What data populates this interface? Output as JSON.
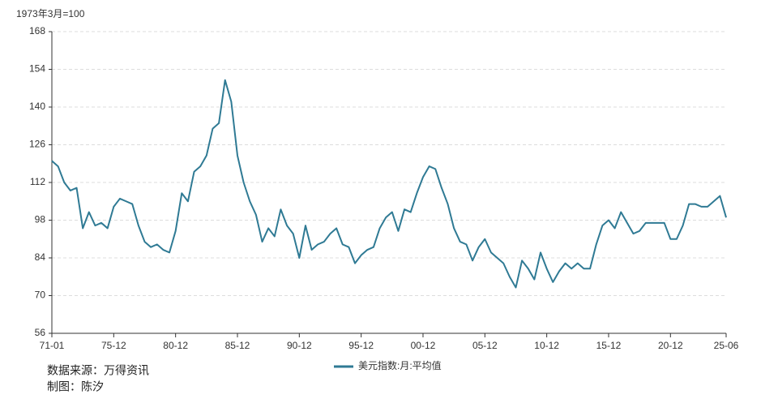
{
  "chart_data": {
    "type": "line",
    "y_label": "1973年3月=100",
    "categories": [
      "71-01",
      null,
      null,
      null,
      null,
      null,
      null,
      null,
      null,
      null,
      "75-12",
      null,
      null,
      null,
      null,
      null,
      null,
      null,
      null,
      null,
      "80-12",
      null,
      null,
      null,
      null,
      null,
      null,
      null,
      null,
      null,
      "85-12",
      null,
      null,
      null,
      null,
      null,
      null,
      null,
      null,
      null,
      "90-12",
      null,
      null,
      null,
      null,
      null,
      null,
      null,
      null,
      null,
      "95-12",
      null,
      null,
      null,
      null,
      null,
      null,
      null,
      null,
      null,
      "00-12",
      null,
      null,
      null,
      null,
      null,
      null,
      null,
      null,
      null,
      "05-12",
      null,
      null,
      null,
      null,
      null,
      null,
      null,
      null,
      null,
      "10-12",
      null,
      null,
      null,
      null,
      null,
      null,
      null,
      null,
      null,
      "15-12",
      null,
      null,
      null,
      null,
      null,
      null,
      null,
      null,
      null,
      "20-12",
      null,
      null,
      null,
      null,
      null,
      null,
      null,
      null,
      "25-06"
    ],
    "series": [
      {
        "name": "美元指数:月:平均值",
        "color": "#2f7a94",
        "values": [
          120,
          118,
          112,
          109,
          110,
          95,
          101,
          96,
          97,
          95,
          103,
          106,
          105,
          104,
          96,
          90,
          88,
          89,
          87,
          86,
          94,
          108,
          105,
          116,
          118,
          122,
          132,
          134,
          150,
          142,
          122,
          112,
          105,
          100,
          90,
          95,
          92,
          102,
          96,
          93,
          84,
          96,
          87,
          89,
          90,
          93,
          95,
          89,
          88,
          82,
          85,
          87,
          88,
          95,
          99,
          101,
          94,
          102,
          101,
          108,
          114,
          118,
          117,
          110,
          104,
          95,
          90,
          89,
          83,
          88,
          91,
          86,
          84,
          82,
          77,
          73,
          83,
          80,
          76,
          86,
          80,
          75,
          79,
          82,
          80,
          82,
          80,
          80,
          89,
          96,
          98,
          95,
          101,
          97,
          93,
          94,
          97,
          97,
          97,
          97,
          91,
          91,
          96,
          104,
          104,
          103,
          103,
          105,
          107,
          99
        ]
      }
    ],
    "ylim": [
      56,
      168
    ],
    "yticks": [
      56,
      70,
      84,
      98,
      112,
      126,
      140,
      154,
      168
    ],
    "grid": true,
    "source": "数据来源：万得资讯",
    "credit": "制图：陈汐"
  }
}
